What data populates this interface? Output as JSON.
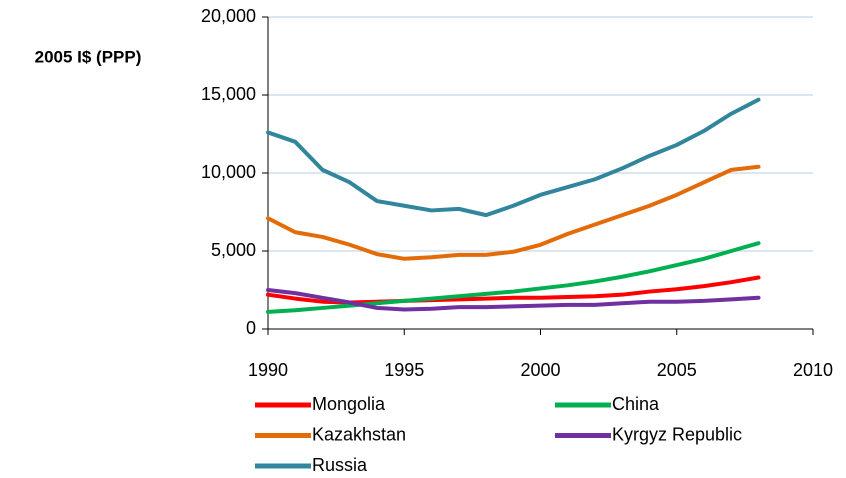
{
  "chart_data": {
    "type": "line",
    "y_label": "2005 I$ (PPP)",
    "x": [
      1990,
      1991,
      1992,
      1993,
      1994,
      1995,
      1996,
      1997,
      1998,
      1999,
      2000,
      2001,
      2002,
      2003,
      2004,
      2005,
      2006,
      2007,
      2008
    ],
    "xlim": [
      1990,
      2010
    ],
    "xticks": [
      1990,
      1995,
      2000,
      2005,
      2010
    ],
    "ylim": [
      0,
      20000
    ],
    "yticks": [
      0,
      {
        "value": 5000,
        "label": "5,000"
      },
      {
        "value": 10000,
        "label": "10,000"
      },
      {
        "value": 15000,
        "label": "15,000"
      },
      {
        "value": 20000,
        "label": "20,000"
      }
    ],
    "grid": true,
    "series": [
      {
        "name": "Mongolia",
        "color": "#ff0000",
        "values": [
          2200,
          1950,
          1750,
          1700,
          1750,
          1800,
          1850,
          1900,
          1950,
          2000,
          2000,
          2050,
          2100,
          2200,
          2400,
          2550,
          2750,
          3000,
          3300
        ]
      },
      {
        "name": "China",
        "color": "#00b050",
        "values": [
          1100,
          1200,
          1350,
          1500,
          1650,
          1800,
          1950,
          2100,
          2250,
          2400,
          2600,
          2800,
          3050,
          3350,
          3700,
          4100,
          4500,
          5000,
          5500
        ]
      },
      {
        "name": "Kazakhstan",
        "color": "#e36c09",
        "values": [
          7100,
          6200,
          5900,
          5400,
          4800,
          4500,
          4600,
          4750,
          4750,
          4950,
          5400,
          6100,
          6700,
          7300,
          7900,
          8600,
          9400,
          10200,
          10400
        ]
      },
      {
        "name": "Kyrgyz Republic",
        "color": "#7030a0",
        "values": [
          2500,
          2300,
          2000,
          1700,
          1350,
          1250,
          1300,
          1400,
          1400,
          1450,
          1500,
          1550,
          1550,
          1650,
          1750,
          1750,
          1800,
          1900,
          2000
        ]
      },
      {
        "name": "Russia",
        "color": "#31859c",
        "values": [
          12600,
          12000,
          10200,
          9400,
          8200,
          7900,
          7600,
          7700,
          7300,
          7900,
          8600,
          9100,
          9600,
          10300,
          11100,
          11800,
          12700,
          13800,
          14700
        ]
      }
    ]
  }
}
